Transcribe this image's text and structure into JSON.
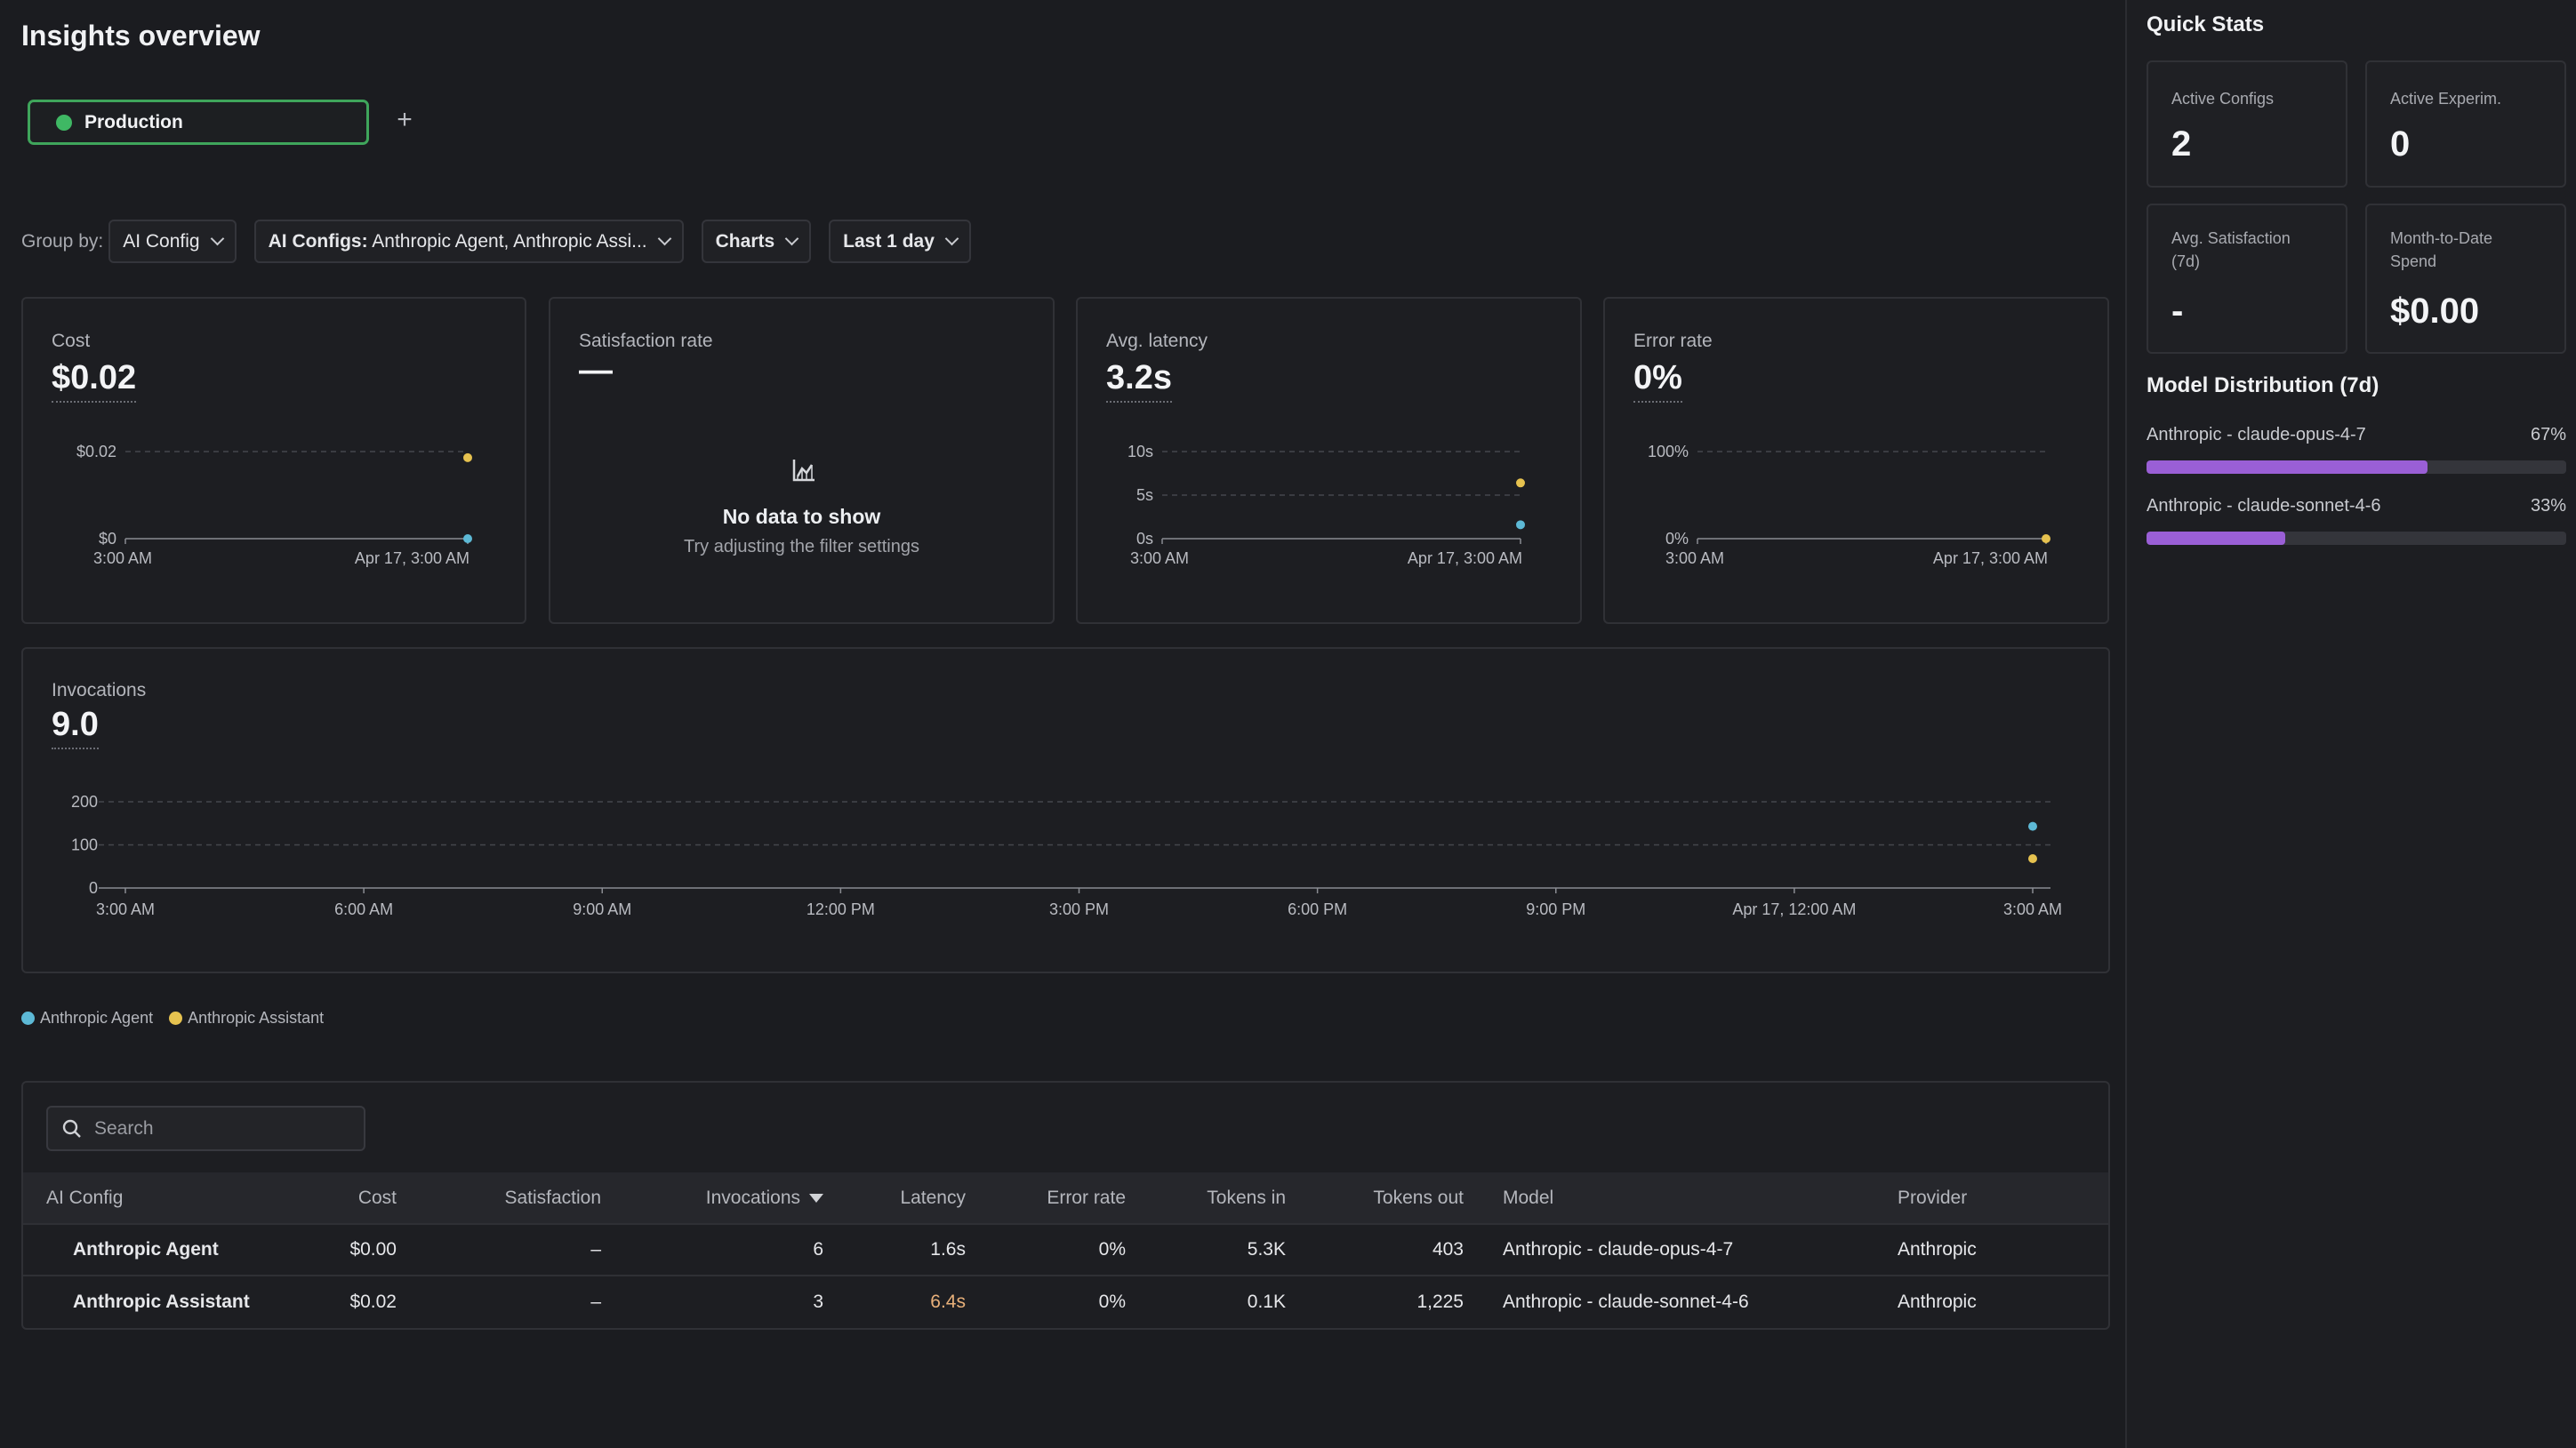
{
  "page_title": "Insights overview",
  "environment": {
    "label": "Production",
    "status_color": "#3fb864"
  },
  "add_env_label": "+",
  "filters": {
    "group_by_label": "Group by:",
    "group_by_value": "AI Config",
    "ai_configs_prefix": "AI Configs:",
    "ai_configs_value": "Anthropic Agent, Anthropic Assi...",
    "view_value": "Charts",
    "range_value": "Last 1 day"
  },
  "series_colors": {
    "agent": "#5db9d6",
    "assistant": "#e6c24f"
  },
  "metrics": {
    "cost": {
      "label": "Cost",
      "value": "$0.02"
    },
    "satisfaction": {
      "label": "Satisfaction rate",
      "value": "—",
      "empty_title": "No data to show",
      "empty_sub": "Try adjusting the filter settings"
    },
    "latency": {
      "label": "Avg. latency",
      "value": "3.2s"
    },
    "error_rate": {
      "label": "Error rate",
      "value": "0%"
    },
    "invocations": {
      "label": "Invocations",
      "value": "9.0"
    }
  },
  "chart_data": [
    {
      "type": "scatter",
      "ylim": [
        0,
        0.02
      ],
      "yticks": [
        "$0.02",
        "$0"
      ],
      "xticks": [
        "3:00 AM",
        "Apr 17, 3:00 AM"
      ],
      "series": [
        {
          "name": "Anthropic Agent",
          "points": [
            {
              "x": "Apr 17, 3:00 AM",
              "y": 0.0
            }
          ]
        },
        {
          "name": "Anthropic Assistant",
          "points": [
            {
              "x": "Apr 17, 3:00 AM",
              "y": 0.0186
            }
          ]
        }
      ]
    },
    {
      "type": "scatter",
      "ylim": [
        0,
        10
      ],
      "yticks": [
        "10s",
        "5s",
        "0s"
      ],
      "xticks": [
        "3:00 AM",
        "Apr 17, 3:00 AM"
      ],
      "series": [
        {
          "name": "Anthropic Agent",
          "points": [
            {
              "x": "Apr 17, 3:00 AM",
              "y": 1.6
            }
          ]
        },
        {
          "name": "Anthropic Assistant",
          "points": [
            {
              "x": "Apr 17, 3:00 AM",
              "y": 6.4
            }
          ]
        }
      ]
    },
    {
      "type": "scatter",
      "ylim": [
        0,
        100
      ],
      "yticks": [
        "100%",
        "0%"
      ],
      "xticks": [
        "3:00 AM",
        "Apr 17, 3:00 AM"
      ],
      "series": [
        {
          "name": "Anthropic Assistant",
          "points": [
            {
              "x": "Apr 17, 3:00 AM",
              "y": 0
            }
          ]
        }
      ]
    },
    {
      "type": "scatter",
      "ylim": [
        0,
        200
      ],
      "yticks": [
        "200",
        "100",
        "0"
      ],
      "xticks": [
        "3:00 AM",
        "6:00 AM",
        "9:00 AM",
        "12:00 PM",
        "3:00 PM",
        "6:00 PM",
        "9:00 PM",
        "Apr 17, 12:00 AM",
        "3:00 AM"
      ],
      "series": [
        {
          "name": "Anthropic Agent",
          "points": [
            {
              "x": "3:00 AM",
              "y": 143
            }
          ]
        },
        {
          "name": "Anthropic Assistant",
          "points": [
            {
              "x": "3:00 AM",
              "y": 68
            }
          ]
        }
      ]
    }
  ],
  "legend": [
    "Anthropic Agent",
    "Anthropic Assistant"
  ],
  "table": {
    "search_placeholder": "Search",
    "columns": [
      "AI Config",
      "Cost",
      "Satisfaction",
      "Invocations",
      "Latency",
      "Error rate",
      "Tokens in",
      "Tokens out",
      "Model",
      "Provider"
    ],
    "rows": [
      {
        "name": "Anthropic Agent",
        "cost": "$0.00",
        "satisfaction": "–",
        "invocations": "6",
        "latency": "1.6s",
        "error_rate": "0%",
        "tokens_in": "5.3K",
        "tokens_out": "403",
        "model": "Anthropic - claude-opus-4-7",
        "provider": "Anthropic"
      },
      {
        "name": "Anthropic Assistant",
        "cost": "$0.02",
        "satisfaction": "–",
        "invocations": "3",
        "latency": "6.4s",
        "error_rate": "0%",
        "tokens_in": "0.1K",
        "tokens_out": "1,225",
        "model": "Anthropic - claude-sonnet-4-6",
        "provider": "Anthropic"
      }
    ],
    "warn_color": "#e8b07a"
  },
  "quick_stats": {
    "title": "Quick Stats",
    "cards": [
      {
        "label": "Active Configs",
        "value": "2"
      },
      {
        "label": "Active Experim.",
        "value": "0"
      },
      {
        "label": "Avg. Satisfaction (7d)",
        "value": "-"
      },
      {
        "label": "Month-to-Date Spend",
        "value": "$0.00"
      }
    ]
  },
  "model_distribution": {
    "title": "Model Distribution (7d)",
    "items": [
      {
        "name": "Anthropic - claude-opus-4-7",
        "pct_label": "67%",
        "fraction": 0.67
      },
      {
        "name": "Anthropic - claude-sonnet-4-6",
        "pct_label": "33%",
        "fraction": 0.33
      }
    ]
  }
}
